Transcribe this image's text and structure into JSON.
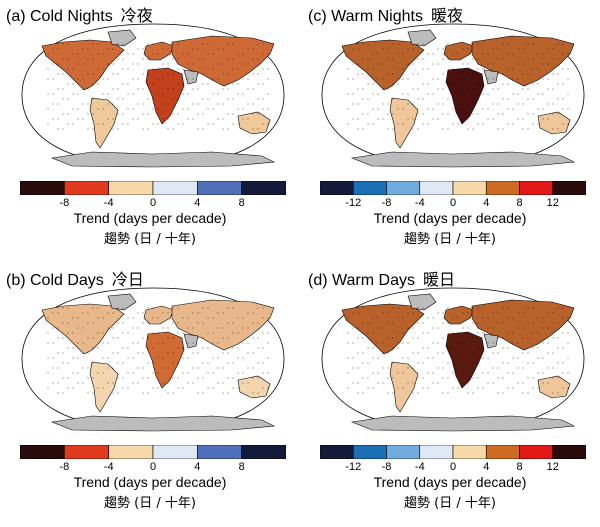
{
  "figure": {
    "panels": [
      {
        "id": "a",
        "title": "(a) Cold Nights",
        "title_cn": "冷夜",
        "colorbar": {
          "colors": [
            "#2a0b0b",
            "#e03a1e",
            "#f7d8a8",
            "#dfe9f5",
            "#4f6fb8",
            "#141b3a"
          ],
          "ticks": [
            "-8",
            "-4",
            "0",
            "4",
            "8"
          ]
        },
        "xlabel": "Trend (days per decade)",
        "xlabel_cn": "趨勢 (日 / 十年)",
        "fills": {
          "north": "#cf6a37",
          "tropics": "#c3401c",
          "south": "#efc99a",
          "greyland": "#bcbcbc"
        }
      },
      {
        "id": "c",
        "title": "(c) Warm Nights",
        "title_cn": "暖夜",
        "colorbar": {
          "colors": [
            "#141b3a",
            "#1c6fb4",
            "#71acdf",
            "#dfe9f5",
            "#f7d8a8",
            "#cf6a22",
            "#e01818",
            "#2a0b0b"
          ],
          "ticks": [
            "-12",
            "-8",
            "-4",
            "0",
            "4",
            "8",
            "12"
          ]
        },
        "xlabel": "Trend (days per decade)",
        "xlabel_cn": "趨勢 (日 / 十年)",
        "fills": {
          "north": "#b8612b",
          "tropics": "#4a0f0f",
          "south": "#f0c79a",
          "greyland": "#bcbcbc"
        }
      },
      {
        "id": "b",
        "title": "(b) Cold Days",
        "title_cn": "冷日",
        "colorbar": {
          "colors": [
            "#2a0b0b",
            "#e03a1e",
            "#f7d8a8",
            "#dfe9f5",
            "#4f6fb8",
            "#141b3a"
          ],
          "ticks": [
            "-8",
            "-4",
            "0",
            "4",
            "8"
          ]
        },
        "xlabel": "Trend (days per decade)",
        "xlabel_cn": "趨勢 (日 / 十年)",
        "fills": {
          "north": "#e9b88a",
          "tropics": "#d26a33",
          "south": "#f3d6b0",
          "greyland": "#bcbcbc"
        }
      },
      {
        "id": "d",
        "title": "(d) Warm Days",
        "title_cn": "暖日",
        "colorbar": {
          "colors": [
            "#141b3a",
            "#1c6fb4",
            "#71acdf",
            "#dfe9f5",
            "#f7d8a8",
            "#cf6a22",
            "#e01818",
            "#2a0b0b"
          ],
          "ticks": [
            "-12",
            "-8",
            "-4",
            "0",
            "4",
            "8",
            "12"
          ]
        },
        "xlabel": "Trend (days per decade)",
        "xlabel_cn": "趨勢 (日 / 十年)",
        "fills": {
          "north": "#b8612b",
          "tropics": "#5a1a10",
          "south": "#f0c79a",
          "greyland": "#bcbcbc"
        }
      }
    ]
  }
}
